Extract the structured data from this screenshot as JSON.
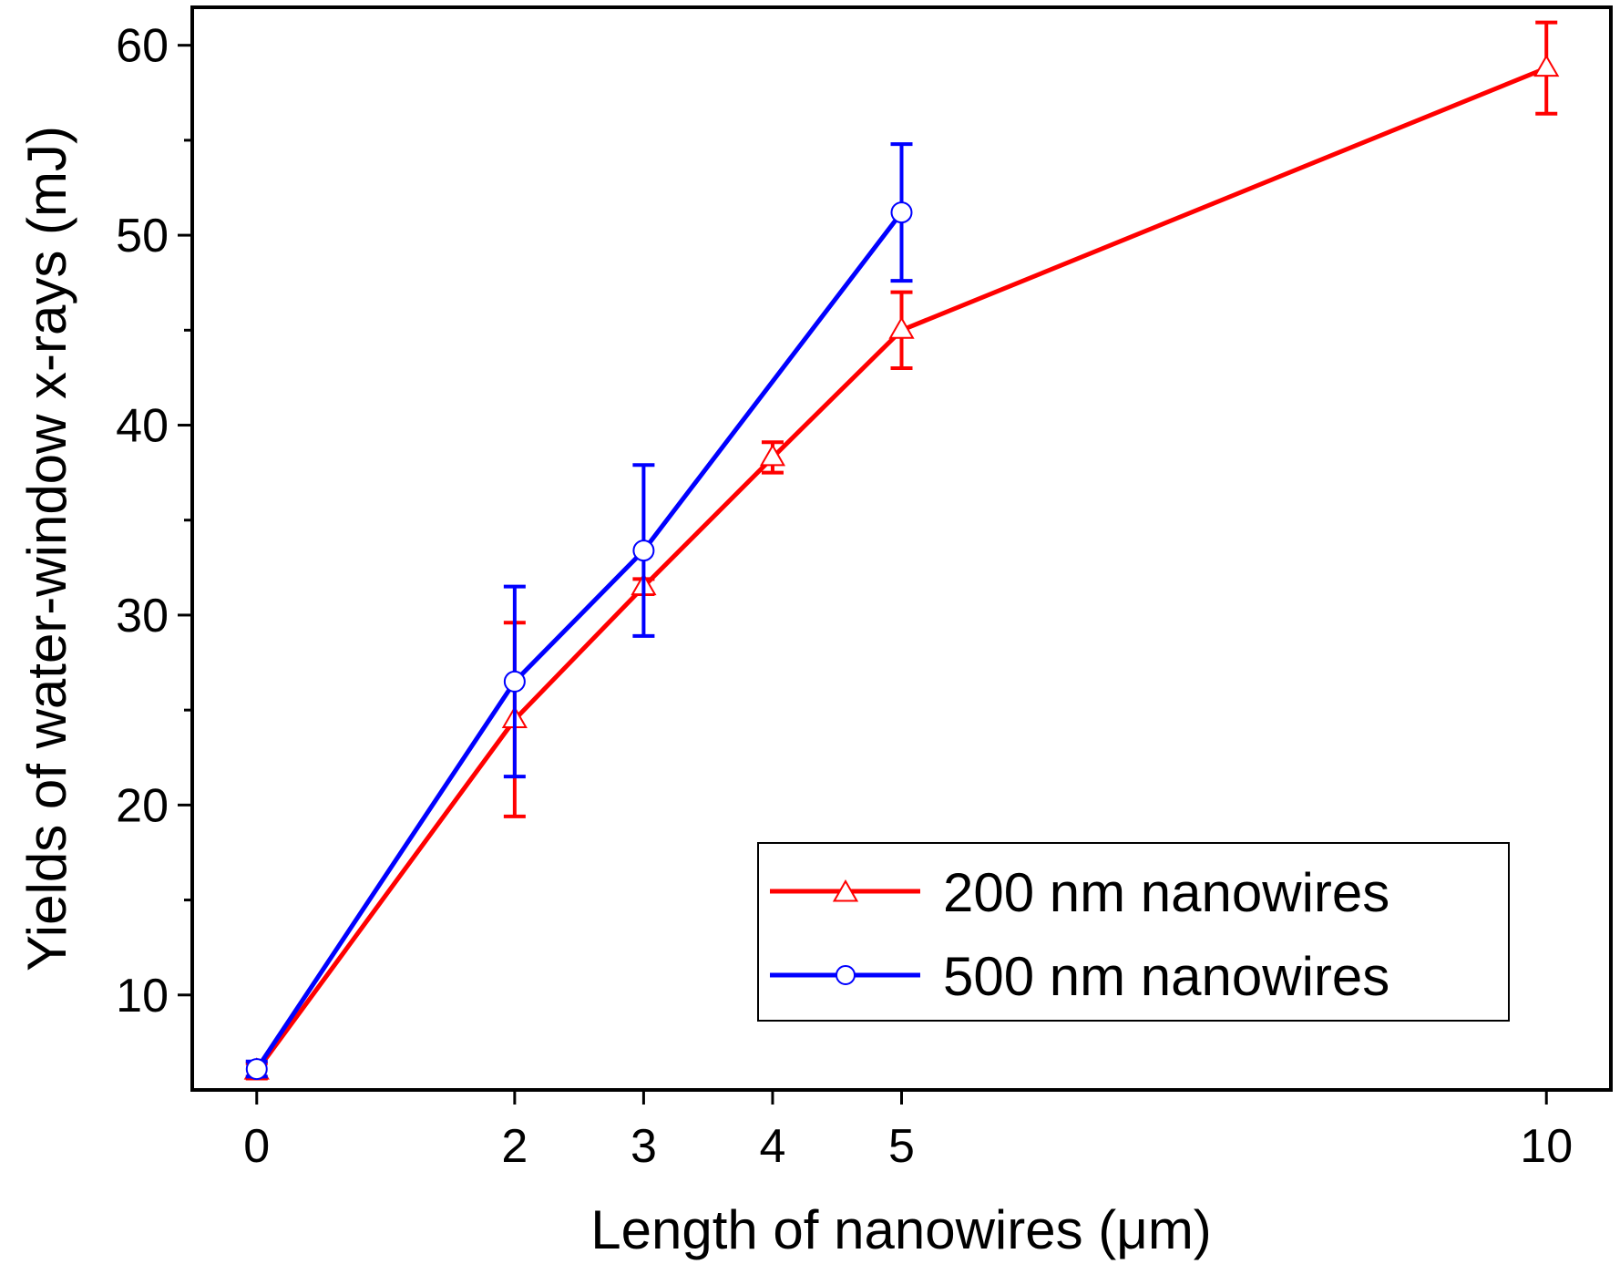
{
  "chart_data": {
    "type": "line",
    "title": "",
    "xlabel": "Length of nanowires (μm)",
    "ylabel": "Yields of water-window x-rays (mJ)",
    "xlim": [
      -0.5,
      10.5
    ],
    "ylim": [
      5,
      62
    ],
    "x_ticks": [
      0,
      2,
      3,
      4,
      5,
      10
    ],
    "x_tick_labels": [
      "0",
      "2",
      "3",
      "4",
      "5",
      "10"
    ],
    "y_ticks": [
      10,
      20,
      30,
      40,
      50,
      60
    ],
    "y_tick_labels": [
      "10",
      "20",
      "30",
      "40",
      "50",
      "60"
    ],
    "y_minor_ticks": [
      15,
      25,
      35,
      45,
      55
    ],
    "grid": false,
    "legend_position": "bottom-right",
    "series": [
      {
        "name": "200 nm nanowires",
        "color": "#ff0000",
        "marker": "triangle",
        "x": [
          0,
          2,
          3,
          4,
          5,
          10
        ],
        "y": [
          6.0,
          24.5,
          31.5,
          38.3,
          45.0,
          58.8
        ],
        "error": [
          0.4,
          5.1,
          0.4,
          0.8,
          2.0,
          2.4
        ]
      },
      {
        "name": "500 nm nanowires",
        "color": "#0000ff",
        "marker": "circle",
        "x": [
          0,
          2,
          3,
          5
        ],
        "y": [
          6.1,
          26.5,
          33.4,
          51.2
        ],
        "error": [
          0.4,
          5.0,
          4.5,
          3.6
        ]
      }
    ]
  }
}
